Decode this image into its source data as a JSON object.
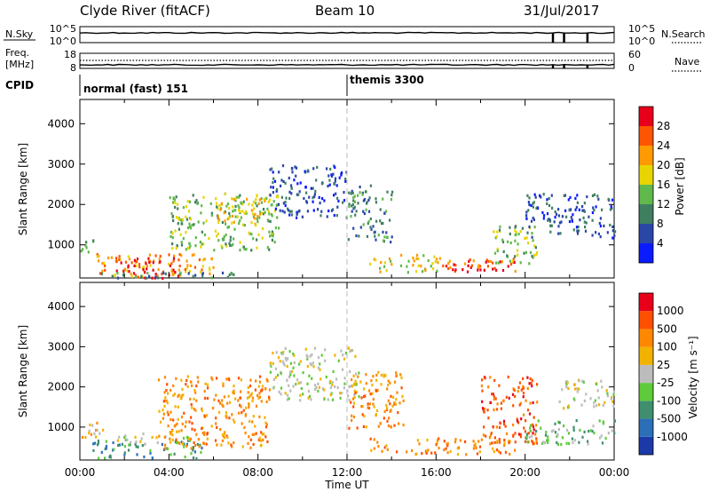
{
  "header": {
    "station": "Clyde River (fitACF)",
    "beam": "Beam 10",
    "date": "31/Jul/2017"
  },
  "nsky_panel": {
    "left_label": "N.Sky",
    "left_ticks": [
      "10^5",
      "10^0"
    ],
    "right_ticks": [
      "10^5",
      "10^0"
    ],
    "right_label": "N.Search",
    "drops_hours": [
      21.25,
      21.75,
      22.8
    ]
  },
  "freq_panel": {
    "left_label_1": "Freq.",
    "left_label_2": "[MHz]",
    "left_ticks": [
      "18",
      "8"
    ],
    "right_ticks": [
      "60",
      "0"
    ],
    "right_label": "Nave",
    "drops_hours": [
      21.25,
      21.75,
      22.8
    ]
  },
  "cpid": {
    "label": "CPID",
    "segments": [
      {
        "name": "normal (fast) 151",
        "start_hour": 0
      },
      {
        "name": "themis 3300",
        "start_hour": 12
      }
    ]
  },
  "chart_data": [
    {
      "type": "heatmap",
      "quantity": "Power",
      "ylabel": "Slant Range [km]",
      "xlabel": "",
      "xlim_hours": [
        0,
        24
      ],
      "ylim": [
        180,
        4600
      ],
      "yticks": [
        "1000",
        "2000",
        "3000",
        "4000"
      ],
      "colorbar_label": "Power [dB]",
      "colorbar_ticks": [
        "4",
        "8",
        "12",
        "16",
        "20",
        "24",
        "28"
      ],
      "colors": [
        "#0a1cff",
        "#2a47a8",
        "#3f7f60",
        "#61b84c",
        "#e8d500",
        "#ff9a00",
        "#ff5500",
        "#e8001a"
      ],
      "clusters": [
        {
          "start_hour": 0.0,
          "end_hour": 0.6,
          "range_min": 700,
          "range_max": 1150,
          "level": 3
        },
        {
          "start_hour": 0.5,
          "end_hour": 6.0,
          "range_min": 250,
          "range_max": 800,
          "level": 5
        },
        {
          "start_hour": 1.6,
          "end_hour": 4.5,
          "range_min": 200,
          "range_max": 700,
          "level": 7
        },
        {
          "start_hour": 0.0,
          "end_hour": 7.0,
          "range_min": 200,
          "range_max": 350,
          "level": 2
        },
        {
          "start_hour": 4.0,
          "end_hour": 9.0,
          "range_min": 900,
          "range_max": 2300,
          "level": 3
        },
        {
          "start_hour": 6.0,
          "end_hour": 8.5,
          "range_min": 1500,
          "range_max": 2300,
          "level": 4
        },
        {
          "start_hour": 8.5,
          "end_hour": 12.0,
          "range_min": 1700,
          "range_max": 3000,
          "level": 1
        },
        {
          "start_hour": 12.0,
          "end_hour": 14.0,
          "range_min": 1100,
          "range_max": 2500,
          "level": 2
        },
        {
          "start_hour": 13.0,
          "end_hour": 16.0,
          "range_min": 350,
          "range_max": 800,
          "level": 4
        },
        {
          "start_hour": 16.0,
          "end_hour": 19.6,
          "range_min": 350,
          "range_max": 700,
          "level": 6
        },
        {
          "start_hour": 16.5,
          "end_hour": 19.0,
          "range_min": 400,
          "range_max": 550,
          "level": 7
        },
        {
          "start_hour": 18.5,
          "end_hour": 20.5,
          "range_min": 500,
          "range_max": 1500,
          "level": 3
        },
        {
          "start_hour": 20.0,
          "end_hour": 24.0,
          "range_min": 1200,
          "range_max": 2300,
          "level": 1
        }
      ]
    },
    {
      "type": "heatmap",
      "quantity": "Velocity",
      "ylabel": "Slant Range [km]",
      "xlabel": "Time UT",
      "xlim_hours": [
        0,
        24
      ],
      "xticks": [
        "00:00",
        "04:00",
        "08:00",
        "12:00",
        "16:00",
        "20:00",
        "00:00"
      ],
      "ylim": [
        180,
        4600
      ],
      "yticks": [
        "1000",
        "2000",
        "3000",
        "4000"
      ],
      "colorbar_label": "Velocity [m s⁻¹]",
      "colorbar_ticks": [
        "1000",
        "500",
        "100",
        "25",
        "-25",
        "-100",
        "-500",
        "-1000"
      ],
      "colors": [
        "#1b3aa8",
        "#2c6fb8",
        "#3f8f6f",
        "#5ecb3a",
        "#bcbcbc",
        "#f2b200",
        "#ff8800",
        "#ff5000",
        "#e8001a"
      ],
      "clusters": [
        {
          "start_hour": 0.0,
          "end_hour": 1.0,
          "range_min": 700,
          "range_max": 1200,
          "level": 5
        },
        {
          "start_hour": 0.5,
          "end_hour": 5.5,
          "range_min": 250,
          "range_max": 700,
          "level": 2
        },
        {
          "start_hour": 1.5,
          "end_hour": 5.0,
          "range_min": 600,
          "range_max": 900,
          "level": 4
        },
        {
          "start_hour": 3.5,
          "end_hour": 8.5,
          "range_min": 500,
          "range_max": 2300,
          "level": 6
        },
        {
          "start_hour": 8.5,
          "end_hour": 12.5,
          "range_min": 1700,
          "range_max": 3000,
          "level": 4
        },
        {
          "start_hour": 12.0,
          "end_hour": 14.5,
          "range_min": 1000,
          "range_max": 2400,
          "level": 6
        },
        {
          "start_hour": 13.0,
          "end_hour": 19.5,
          "range_min": 350,
          "range_max": 750,
          "level": 6
        },
        {
          "start_hour": 18.0,
          "end_hour": 20.5,
          "range_min": 600,
          "range_max": 2300,
          "level": 7
        },
        {
          "start_hour": 21.5,
          "end_hour": 24.0,
          "range_min": 1500,
          "range_max": 2200,
          "level": 4
        },
        {
          "start_hour": 20.0,
          "end_hour": 24.0,
          "range_min": 600,
          "range_max": 1200,
          "level": 3
        }
      ]
    }
  ]
}
